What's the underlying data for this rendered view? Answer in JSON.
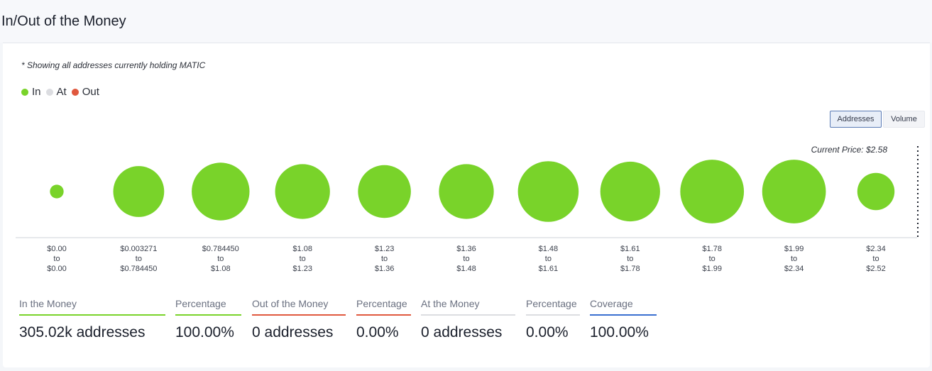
{
  "page": {
    "title": "In/Out of the Money"
  },
  "note": "* Showing all addresses currently holding MATIC",
  "legend": [
    {
      "label": "In",
      "color": "#79d32a"
    },
    {
      "label": "At",
      "color": "#dcdde1"
    },
    {
      "label": "Out",
      "color": "#e0583e"
    }
  ],
  "toggles": {
    "addresses": "Addresses",
    "volume": "Volume",
    "selected": "Addresses"
  },
  "chart_data": {
    "type": "bubble",
    "current_price_label": "Current Price: $2.58",
    "bins": [
      {
        "from": "$0.00",
        "to_word": "to",
        "to": "$0.00",
        "size": 0.14,
        "status": "In"
      },
      {
        "from": "$0.003271",
        "to_word": "to",
        "to": "$0.784450",
        "size": 0.52,
        "status": "In"
      },
      {
        "from": "$0.784450",
        "to_word": "to",
        "to": "$1.08",
        "size": 0.59,
        "status": "In"
      },
      {
        "from": "$1.08",
        "to_word": "to",
        "to": "$1.23",
        "size": 0.56,
        "status": "In"
      },
      {
        "from": "$1.23",
        "to_word": "to",
        "to": "$1.36",
        "size": 0.54,
        "status": "In"
      },
      {
        "from": "$1.36",
        "to_word": "to",
        "to": "$1.48",
        "size": 0.56,
        "status": "In"
      },
      {
        "from": "$1.48",
        "to_word": "to",
        "to": "$1.61",
        "size": 0.62,
        "status": "In"
      },
      {
        "from": "$1.61",
        "to_word": "to",
        "to": "$1.78",
        "size": 0.61,
        "status": "In"
      },
      {
        "from": "$1.78",
        "to_word": "to",
        "to": "$1.99",
        "size": 0.65,
        "status": "In"
      },
      {
        "from": "$1.99",
        "to_word": "to",
        "to": "$2.34",
        "size": 0.65,
        "status": "In"
      },
      {
        "from": "$2.34",
        "to_word": "to",
        "to": "$2.52",
        "size": 0.38,
        "status": "In"
      }
    ]
  },
  "stats": [
    {
      "label": "In the Money",
      "value": "305.02k addresses",
      "color": "#79d32a"
    },
    {
      "label": "Percentage",
      "value": "100.00%",
      "color": "#79d32a"
    },
    {
      "label": "Out of the Money",
      "value": "0 addresses",
      "color": "#e0583e"
    },
    {
      "label": "Percentage",
      "value": "0.00%",
      "color": "#e0583e"
    },
    {
      "label": "At the Money",
      "value": "0 addresses",
      "color": "#dcdde1"
    },
    {
      "label": "Percentage",
      "value": "0.00%",
      "color": "#dcdde1"
    },
    {
      "label": "Coverage",
      "value": "100.00%",
      "color": "#3a6fd0"
    }
  ]
}
